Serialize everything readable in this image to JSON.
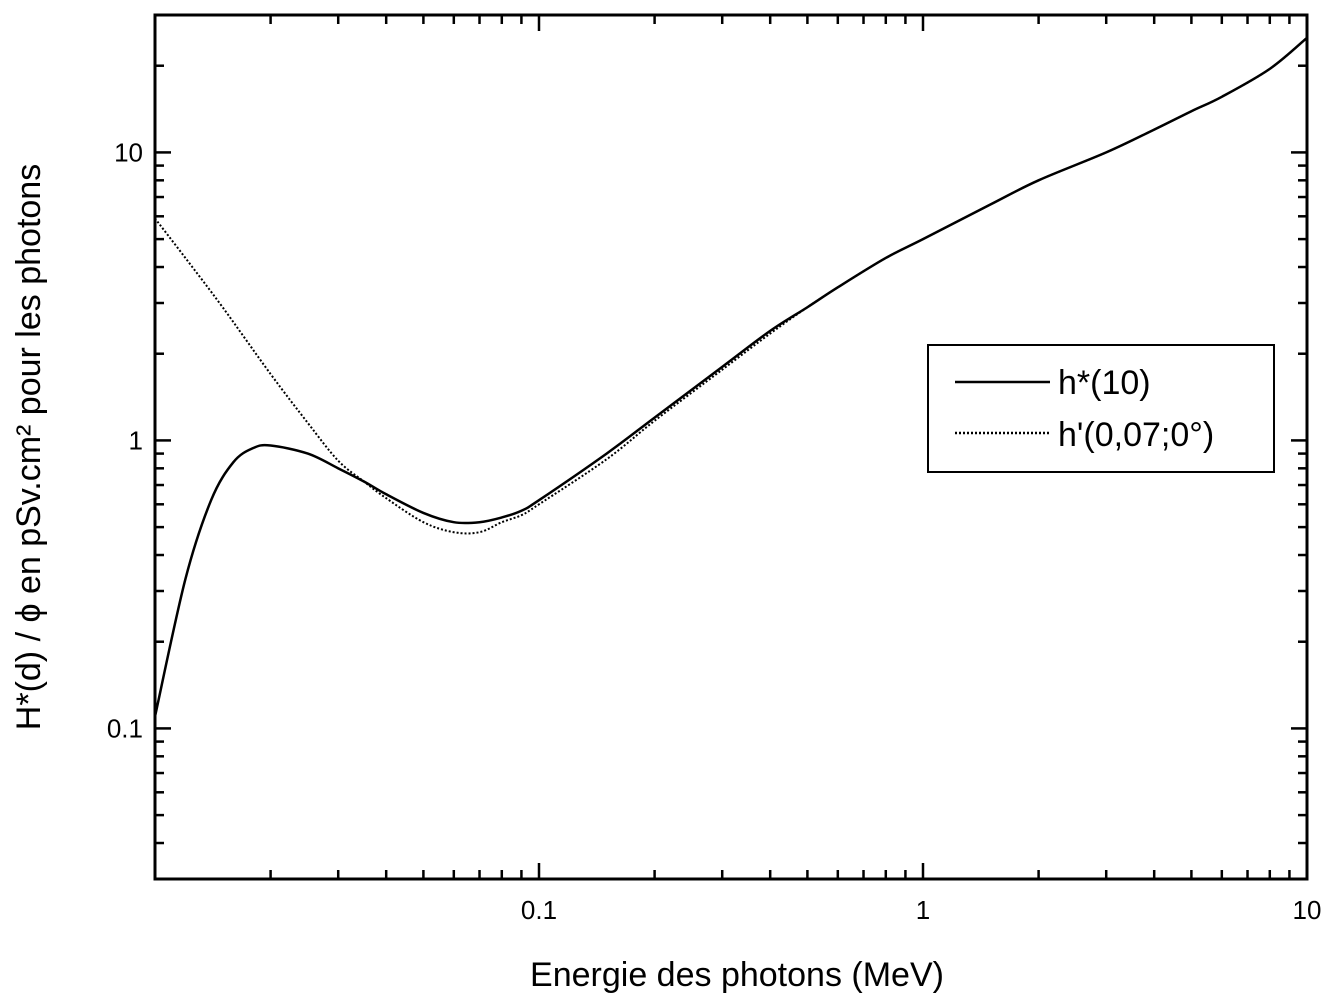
{
  "chart_data": {
    "type": "line",
    "xlabel": "Energie des photons (MeV)",
    "ylabel": "H*(d) / ϕ en pSv.cm² pour les photons",
    "x_scale": "log",
    "y_scale": "log",
    "xlim": [
      0.01,
      10
    ],
    "ylim": [
      0.03,
      30
    ],
    "x_ticks": [
      {
        "value": 0.1,
        "label": "0.1"
      },
      {
        "value": 1,
        "label": "1"
      },
      {
        "value": 10,
        "label": "10"
      }
    ],
    "y_ticks": [
      {
        "value": 0.1,
        "label": "0.1"
      },
      {
        "value": 1,
        "label": "1"
      },
      {
        "value": 10,
        "label": "10"
      }
    ],
    "grid": false,
    "legend": "right",
    "series": [
      {
        "name": "h*(10)",
        "style": "solid",
        "color": "#000000",
        "points": [
          [
            0.01,
            0.11
          ],
          [
            0.012,
            0.33
          ],
          [
            0.014,
            0.62
          ],
          [
            0.016,
            0.84
          ],
          [
            0.018,
            0.94
          ],
          [
            0.02,
            0.96
          ],
          [
            0.025,
            0.9
          ],
          [
            0.03,
            0.8
          ],
          [
            0.035,
            0.72
          ],
          [
            0.04,
            0.65
          ],
          [
            0.05,
            0.56
          ],
          [
            0.06,
            0.52
          ],
          [
            0.07,
            0.52
          ],
          [
            0.08,
            0.54
          ],
          [
            0.09,
            0.57
          ],
          [
            0.1,
            0.62
          ],
          [
            0.15,
            0.9
          ],
          [
            0.2,
            1.2
          ],
          [
            0.3,
            1.8
          ],
          [
            0.4,
            2.4
          ],
          [
            0.5,
            2.9
          ],
          [
            0.6,
            3.4
          ],
          [
            0.8,
            4.3
          ],
          [
            1,
            5.0
          ],
          [
            1.5,
            6.6
          ],
          [
            2,
            8.0
          ],
          [
            3,
            10.0
          ],
          [
            4,
            12.0
          ],
          [
            5,
            13.9
          ],
          [
            6,
            15.6
          ],
          [
            8,
            19.5
          ],
          [
            10,
            25.0
          ]
        ]
      },
      {
        "name": "h'(0,07;0°)",
        "style": "dotted",
        "color": "#000000",
        "points": [
          [
            0.01,
            5.9
          ],
          [
            0.012,
            4.3
          ],
          [
            0.015,
            2.9
          ],
          [
            0.02,
            1.7
          ],
          [
            0.025,
            1.15
          ],
          [
            0.03,
            0.85
          ],
          [
            0.035,
            0.72
          ],
          [
            0.04,
            0.63
          ],
          [
            0.05,
            0.52
          ],
          [
            0.06,
            0.48
          ],
          [
            0.07,
            0.48
          ],
          [
            0.08,
            0.52
          ],
          [
            0.09,
            0.55
          ],
          [
            0.1,
            0.6
          ],
          [
            0.15,
            0.86
          ],
          [
            0.2,
            1.17
          ],
          [
            0.3,
            1.76
          ],
          [
            0.4,
            2.35
          ],
          [
            0.5,
            2.9
          ],
          [
            0.6,
            3.4
          ],
          [
            0.8,
            4.3
          ],
          [
            1,
            5.0
          ],
          [
            1.5,
            6.6
          ],
          [
            2,
            8.0
          ],
          [
            3,
            10.0
          ],
          [
            4,
            12.0
          ],
          [
            5,
            13.9
          ],
          [
            6,
            15.6
          ],
          [
            8,
            19.5
          ],
          [
            10,
            25.0
          ]
        ]
      }
    ]
  }
}
